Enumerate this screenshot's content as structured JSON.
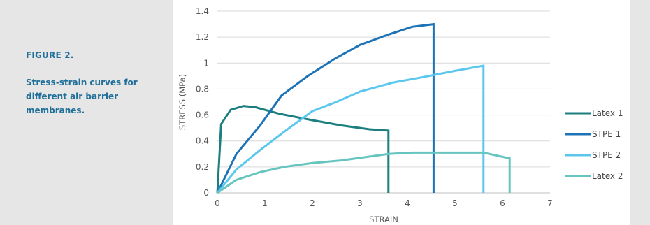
{
  "figure": {
    "title": "FIGURE 2.",
    "caption": "Stress-strain curves for different air barrier membranes."
  },
  "colors": {
    "sidebar_bg": "#e6e6e6",
    "caption_text": "#1f6f9a"
  },
  "chart_data": {
    "type": "line",
    "xlabel": "STRAIN",
    "ylabel": "STRESS (MPa)",
    "xlim": [
      0,
      7
    ],
    "ylim": [
      0,
      1.4
    ],
    "xticks": [
      0,
      1,
      2,
      3,
      4,
      5,
      6,
      7
    ],
    "yticks": [
      0,
      0.2,
      0.4,
      0.6,
      0.8,
      1,
      1.2,
      1.4
    ],
    "ytick_labels": [
      "0",
      "0.2",
      "0.4",
      "0.6",
      "0.8",
      "1",
      "1.2",
      "1.4"
    ],
    "grid": "horizontal",
    "legend_position": "right",
    "series": [
      {
        "name": "Latex 1",
        "color": "#1b7f80",
        "points": [
          [
            0,
            0
          ],
          [
            0.08,
            0.53
          ],
          [
            0.28,
            0.64
          ],
          [
            0.55,
            0.67
          ],
          [
            0.8,
            0.66
          ],
          [
            1.3,
            0.61
          ],
          [
            2.0,
            0.56
          ],
          [
            2.6,
            0.52
          ],
          [
            3.2,
            0.49
          ],
          [
            3.6,
            0.48
          ],
          [
            3.6,
            0
          ]
        ]
      },
      {
        "name": "STPE 1",
        "color": "#1e73b6",
        "points": [
          [
            0,
            0
          ],
          [
            0.4,
            0.3
          ],
          [
            0.9,
            0.52
          ],
          [
            1.35,
            0.75
          ],
          [
            1.9,
            0.9
          ],
          [
            2.5,
            1.04
          ],
          [
            3.0,
            1.14
          ],
          [
            3.6,
            1.22
          ],
          [
            4.1,
            1.28
          ],
          [
            4.55,
            1.3
          ],
          [
            4.55,
            0
          ]
        ]
      },
      {
        "name": "STPE 2",
        "color": "#5cc7ee",
        "points": [
          [
            0,
            0
          ],
          [
            0.4,
            0.18
          ],
          [
            0.9,
            0.33
          ],
          [
            1.4,
            0.47
          ],
          [
            2.0,
            0.63
          ],
          [
            2.5,
            0.7
          ],
          [
            3.0,
            0.78
          ],
          [
            3.7,
            0.85
          ],
          [
            4.3,
            0.89
          ],
          [
            5.0,
            0.94
          ],
          [
            5.6,
            0.98
          ],
          [
            5.6,
            0
          ]
        ]
      },
      {
        "name": "Latex 2",
        "color": "#67c5c0",
        "points": [
          [
            0,
            0
          ],
          [
            0.4,
            0.1
          ],
          [
            0.9,
            0.16
          ],
          [
            1.4,
            0.2
          ],
          [
            2.0,
            0.23
          ],
          [
            2.6,
            0.25
          ],
          [
            3.2,
            0.28
          ],
          [
            3.6,
            0.3
          ],
          [
            4.1,
            0.31
          ],
          [
            4.6,
            0.31
          ],
          [
            5.0,
            0.31
          ],
          [
            5.6,
            0.31
          ],
          [
            6.1,
            0.27
          ],
          [
            6.15,
            0.27
          ],
          [
            6.15,
            0
          ]
        ]
      }
    ]
  }
}
